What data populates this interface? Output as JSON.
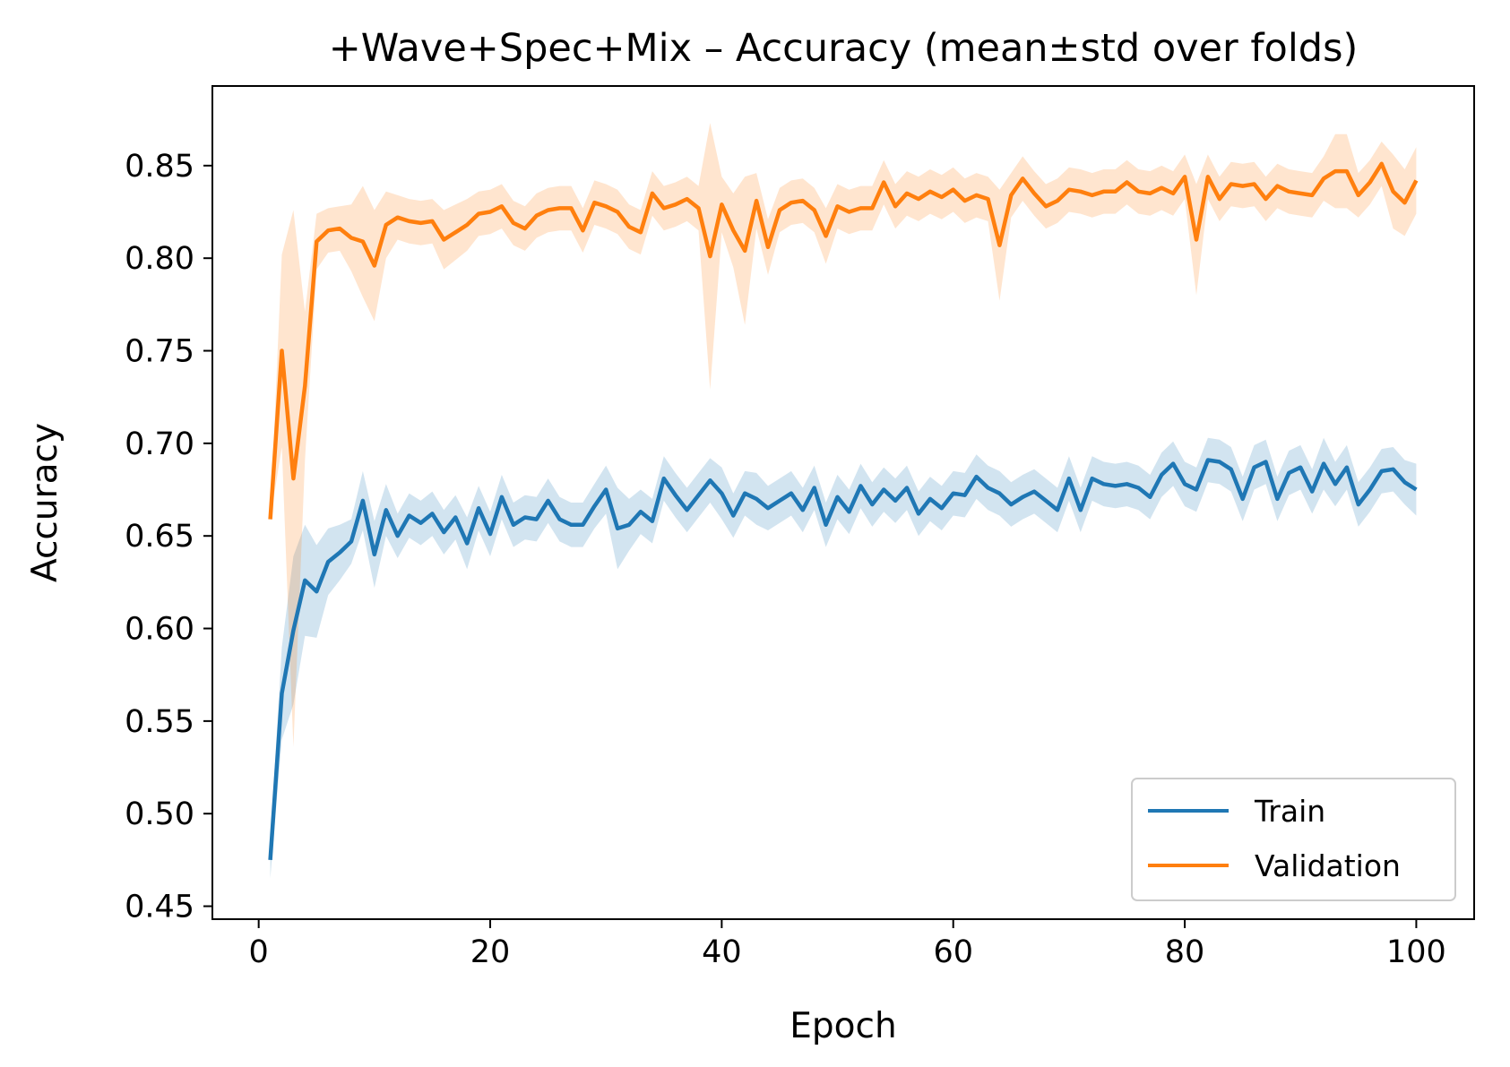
{
  "chart_data": {
    "type": "line",
    "title": "+Wave+Spec+Mix – Accuracy (mean±std over folds)",
    "xlabel": "Epoch",
    "ylabel": "Accuracy",
    "xlim": [
      -4,
      105
    ],
    "ylim": [
      0.443,
      0.893
    ],
    "x_ticks": [
      0,
      20,
      40,
      60,
      80,
      100
    ],
    "x_tick_labels": [
      "0",
      "20",
      "40",
      "60",
      "80",
      "100"
    ],
    "y_ticks": [
      0.45,
      0.5,
      0.55,
      0.6,
      0.65,
      0.7,
      0.75,
      0.8,
      0.85
    ],
    "y_tick_labels": [
      "0.45",
      "0.50",
      "0.55",
      "0.60",
      "0.65",
      "0.70",
      "0.75",
      "0.80",
      "0.85"
    ],
    "grid": false,
    "legend_position": "lower-right",
    "x": [
      1,
      2,
      3,
      4,
      5,
      6,
      7,
      8,
      9,
      10,
      11,
      12,
      13,
      14,
      15,
      16,
      17,
      18,
      19,
      20,
      21,
      22,
      23,
      24,
      25,
      26,
      27,
      28,
      29,
      30,
      31,
      32,
      33,
      34,
      35,
      36,
      37,
      38,
      39,
      40,
      41,
      42,
      43,
      44,
      45,
      46,
      47,
      48,
      49,
      50,
      51,
      52,
      53,
      54,
      55,
      56,
      57,
      58,
      59,
      60,
      61,
      62,
      63,
      64,
      65,
      66,
      67,
      68,
      69,
      70,
      71,
      72,
      73,
      74,
      75,
      76,
      77,
      78,
      79,
      80,
      81,
      82,
      83,
      84,
      85,
      86,
      87,
      88,
      89,
      90,
      91,
      92,
      93,
      94,
      95,
      96,
      97,
      98,
      99,
      100
    ],
    "series": [
      {
        "name": "Train",
        "color": "#1f77b4",
        "values": [
          0.475,
          0.565,
          0.599,
          0.626,
          0.62,
          0.636,
          0.641,
          0.647,
          0.669,
          0.64,
          0.664,
          0.65,
          0.661,
          0.657,
          0.662,
          0.652,
          0.66,
          0.646,
          0.665,
          0.651,
          0.671,
          0.656,
          0.66,
          0.659,
          0.669,
          0.659,
          0.656,
          0.656,
          0.666,
          0.675,
          0.654,
          0.656,
          0.663,
          0.658,
          0.681,
          0.672,
          0.664,
          0.672,
          0.68,
          0.673,
          0.661,
          0.673,
          0.67,
          0.665,
          0.669,
          0.673,
          0.664,
          0.676,
          0.656,
          0.671,
          0.663,
          0.677,
          0.667,
          0.675,
          0.669,
          0.676,
          0.662,
          0.67,
          0.665,
          0.673,
          0.672,
          0.682,
          0.676,
          0.673,
          0.667,
          0.671,
          0.674,
          0.669,
          0.664,
          0.681,
          0.664,
          0.681,
          0.678,
          0.677,
          0.678,
          0.676,
          0.671,
          0.683,
          0.689,
          0.678,
          0.675,
          0.691,
          0.69,
          0.686,
          0.67,
          0.687,
          0.69,
          0.67,
          0.684,
          0.687,
          0.674,
          0.689,
          0.678,
          0.687,
          0.667,
          0.675,
          0.685,
          0.686,
          0.679,
          0.675
        ],
        "std": [
          0.01,
          0.025,
          0.04,
          0.03,
          0.025,
          0.018,
          0.015,
          0.012,
          0.016,
          0.018,
          0.014,
          0.012,
          0.012,
          0.012,
          0.012,
          0.012,
          0.012,
          0.014,
          0.012,
          0.012,
          0.012,
          0.012,
          0.012,
          0.012,
          0.012,
          0.012,
          0.012,
          0.012,
          0.012,
          0.013,
          0.022,
          0.014,
          0.012,
          0.012,
          0.012,
          0.012,
          0.012,
          0.012,
          0.012,
          0.014,
          0.012,
          0.012,
          0.014,
          0.012,
          0.012,
          0.012,
          0.012,
          0.012,
          0.012,
          0.012,
          0.012,
          0.012,
          0.012,
          0.012,
          0.012,
          0.012,
          0.012,
          0.012,
          0.012,
          0.012,
          0.012,
          0.012,
          0.012,
          0.012,
          0.012,
          0.012,
          0.012,
          0.012,
          0.012,
          0.012,
          0.012,
          0.012,
          0.012,
          0.012,
          0.012,
          0.012,
          0.012,
          0.012,
          0.012,
          0.012,
          0.012,
          0.012,
          0.012,
          0.012,
          0.012,
          0.012,
          0.012,
          0.012,
          0.012,
          0.012,
          0.012,
          0.014,
          0.012,
          0.012,
          0.012,
          0.012,
          0.012,
          0.012,
          0.012,
          0.014
        ]
      },
      {
        "name": "Validation",
        "color": "#ff7f0e",
        "values": [
          0.659,
          0.75,
          0.681,
          0.731,
          0.809,
          0.815,
          0.816,
          0.811,
          0.809,
          0.796,
          0.818,
          0.822,
          0.82,
          0.819,
          0.82,
          0.81,
          0.814,
          0.818,
          0.824,
          0.825,
          0.828,
          0.819,
          0.816,
          0.823,
          0.826,
          0.827,
          0.827,
          0.815,
          0.83,
          0.828,
          0.825,
          0.817,
          0.814,
          0.835,
          0.827,
          0.829,
          0.832,
          0.827,
          0.801,
          0.829,
          0.815,
          0.804,
          0.831,
          0.806,
          0.826,
          0.83,
          0.831,
          0.826,
          0.812,
          0.828,
          0.825,
          0.827,
          0.827,
          0.841,
          0.828,
          0.835,
          0.832,
          0.836,
          0.833,
          0.837,
          0.831,
          0.834,
          0.832,
          0.807,
          0.834,
          0.843,
          0.835,
          0.828,
          0.831,
          0.837,
          0.836,
          0.834,
          0.836,
          0.836,
          0.841,
          0.836,
          0.835,
          0.838,
          0.835,
          0.844,
          0.81,
          0.844,
          0.832,
          0.84,
          0.839,
          0.84,
          0.832,
          0.839,
          0.836,
          0.835,
          0.834,
          0.843,
          0.847,
          0.847,
          0.834,
          0.841,
          0.851,
          0.836,
          0.83,
          0.842
        ],
        "std": [
          0.0,
          0.052,
          0.145,
          0.04,
          0.015,
          0.012,
          0.012,
          0.018,
          0.03,
          0.03,
          0.018,
          0.012,
          0.012,
          0.012,
          0.012,
          0.016,
          0.015,
          0.014,
          0.012,
          0.012,
          0.012,
          0.012,
          0.012,
          0.012,
          0.012,
          0.012,
          0.012,
          0.012,
          0.012,
          0.012,
          0.012,
          0.012,
          0.012,
          0.012,
          0.012,
          0.012,
          0.012,
          0.012,
          0.072,
          0.015,
          0.02,
          0.04,
          0.015,
          0.015,
          0.012,
          0.012,
          0.012,
          0.012,
          0.015,
          0.012,
          0.012,
          0.012,
          0.012,
          0.012,
          0.012,
          0.012,
          0.012,
          0.012,
          0.012,
          0.012,
          0.012,
          0.012,
          0.012,
          0.03,
          0.012,
          0.012,
          0.012,
          0.012,
          0.012,
          0.012,
          0.012,
          0.012,
          0.012,
          0.012,
          0.012,
          0.012,
          0.012,
          0.012,
          0.012,
          0.012,
          0.03,
          0.012,
          0.012,
          0.012,
          0.012,
          0.012,
          0.012,
          0.012,
          0.012,
          0.012,
          0.012,
          0.012,
          0.02,
          0.02,
          0.012,
          0.012,
          0.012,
          0.02,
          0.018,
          0.018
        ]
      }
    ]
  }
}
